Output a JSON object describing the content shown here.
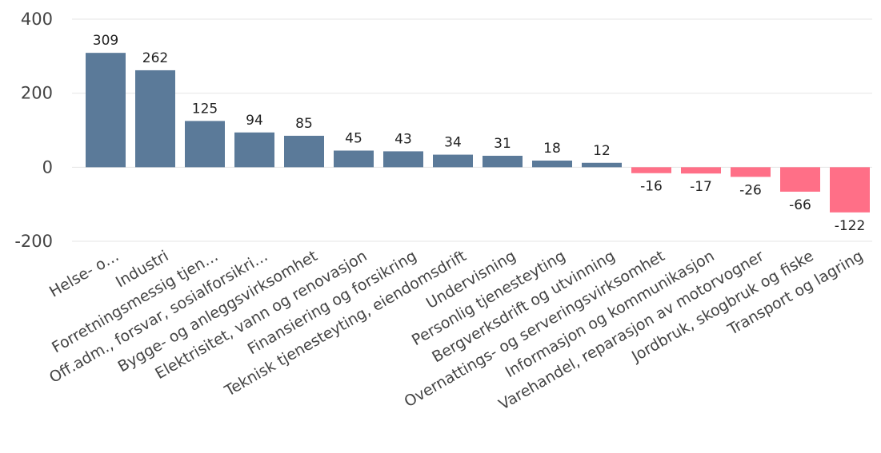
{
  "chart_data": {
    "type": "bar",
    "categories": [
      "Helse- o…",
      "Industri",
      "Forretningsmessig tjen…",
      "Off.adm., forsvar, sosialforsikri…",
      "Bygge- og anleggsvirksomhet",
      "Elektrisitet, vann og renovasjon",
      "Finansiering og forsikring",
      "Teknisk tjenesteyting, eiendomsdrift",
      "Undervisning",
      "Personlig tjenesteyting",
      "Bergverksdrift og utvinning",
      "Overnattings- og serveringsvirksomhet",
      "Informasjon og kommunikasjon",
      "Varehandel, reparasjon av motorvogner",
      "Jordbruk, skogbruk og fiske",
      "Transport og lagring"
    ],
    "values": [
      309,
      262,
      125,
      94,
      85,
      45,
      43,
      34,
      31,
      18,
      12,
      -16,
      -17,
      -26,
      -66,
      -122
    ],
    "value_labels": [
      "309",
      "262",
      "125",
      "94",
      "85",
      "45",
      "43",
      "34",
      "31",
      "18",
      "12",
      "-16",
      "-17",
      "-26",
      "-66",
      "-122"
    ],
    "yticks": [
      400,
      200,
      0,
      -200
    ],
    "ytick_labels": [
      "400",
      "200",
      "0",
      "-200"
    ],
    "ylim": [
      -200,
      400
    ],
    "grid": true,
    "legend": "none",
    "colors": {
      "positive": "#5b7a99",
      "negative": "#ff6f87",
      "gridline": "#e6e6e6",
      "text": "#444444"
    }
  }
}
